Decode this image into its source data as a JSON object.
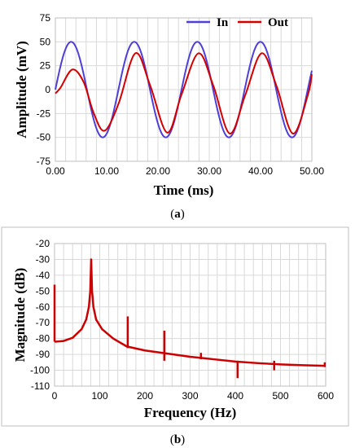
{
  "chart_data": [
    {
      "type": "line",
      "xlabel": "Time (ms)",
      "ylabel": "Amplitude (mV)",
      "xlim": [
        0,
        50
      ],
      "ylim": [
        -75,
        75
      ],
      "x_ticks": [
        "0.00",
        "10.00",
        "20.00",
        "30.00",
        "40.00",
        "50.00"
      ],
      "y_ticks": [
        "75",
        "50",
        "25",
        "0",
        "-25",
        "-50",
        "-75"
      ],
      "grid": true,
      "legend_position": "top-right",
      "caption": "a",
      "series": [
        {
          "name": "In",
          "color": "#4f3fd9",
          "amplitude": 50,
          "period_ms": 12.3,
          "phase_start": 0,
          "x": [
            0,
            3.1,
            6.2,
            9.2,
            12.3,
            15.4,
            18.5,
            21.5,
            24.6,
            27.7,
            30.8,
            33.8,
            36.9,
            40.0,
            43.1,
            46.1,
            49.2,
            50
          ],
          "y": [
            0,
            50,
            0,
            -50,
            0,
            50,
            0,
            -50,
            0,
            50,
            0,
            -50,
            0,
            50,
            0,
            -50,
            0,
            25
          ]
        },
        {
          "name": "Out",
          "color": "#d40000",
          "x": [
            0,
            1.0,
            3.3,
            5.5,
            7.5,
            9.6,
            12.3,
            15.6,
            18.5,
            21.8,
            24.6,
            27.9,
            30.8,
            34.0,
            37.0,
            40.2,
            43.1,
            46.3,
            49.2,
            50
          ],
          "y": [
            -4,
            2,
            21,
            8,
            -25,
            -43,
            -15,
            38,
            4,
            -45,
            -5,
            38,
            4,
            -46,
            -6,
            38,
            4,
            -46,
            -6,
            16
          ]
        }
      ]
    },
    {
      "type": "line",
      "xlabel": "Frequency (Hz)",
      "ylabel": "Magnitude (dB)",
      "xlim": [
        0,
        600
      ],
      "ylim": [
        -110,
        -20
      ],
      "x_ticks": [
        "0",
        "100",
        "200",
        "300",
        "400",
        "500",
        "600"
      ],
      "y_ticks": [
        "-20",
        "-30",
        "-40",
        "-50",
        "-60",
        "-70",
        "-80",
        "-90",
        "-100",
        "-110"
      ],
      "grid": true,
      "caption": "b",
      "series": [
        {
          "color": "#cc0000",
          "peak_hz": 81,
          "peak_db": -30,
          "spikes": [
            {
              "hz": 0,
              "top": -46,
              "bottom": -82
            },
            {
              "hz": 162,
              "top": -66,
              "bottom": -86
            },
            {
              "hz": 243,
              "top": -75,
              "bottom": -94
            },
            {
              "hz": 324,
              "top": -89,
              "bottom": -93
            },
            {
              "hz": 405,
              "top": -94,
              "bottom": -105
            },
            {
              "hz": 486,
              "top": -94,
              "bottom": -100
            },
            {
              "hz": 598,
              "top": -95,
              "bottom": -98
            }
          ],
          "baseline": [
            {
              "hz": 0,
              "db": -82
            },
            {
              "hz": 20,
              "db": -81.5
            },
            {
              "hz": 40,
              "db": -79.5
            },
            {
              "hz": 60,
              "db": -74
            },
            {
              "hz": 70,
              "db": -68
            },
            {
              "hz": 76,
              "db": -60
            },
            {
              "hz": 79,
              "db": -50
            },
            {
              "hz": 81,
              "db": -30
            },
            {
              "hz": 83,
              "db": -50
            },
            {
              "hz": 86,
              "db": -60
            },
            {
              "hz": 92,
              "db": -68
            },
            {
              "hz": 105,
              "db": -74
            },
            {
              "hz": 130,
              "db": -80
            },
            {
              "hz": 160,
              "db": -85
            },
            {
              "hz": 200,
              "db": -87.5
            },
            {
              "hz": 250,
              "db": -89.5
            },
            {
              "hz": 300,
              "db": -91.5
            },
            {
              "hz": 350,
              "db": -93
            },
            {
              "hz": 400,
              "db": -94.5
            },
            {
              "hz": 450,
              "db": -95.5
            },
            {
              "hz": 500,
              "db": -96.3
            },
            {
              "hz": 550,
              "db": -96.8
            },
            {
              "hz": 600,
              "db": -97.2
            }
          ]
        }
      ]
    }
  ]
}
